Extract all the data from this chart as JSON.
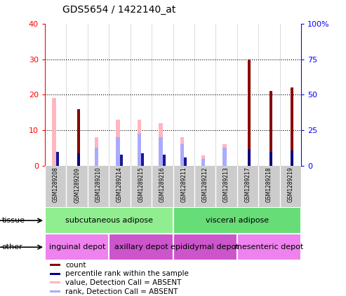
{
  "title": "GDS5654 / 1422140_at",
  "samples": [
    "GSM1289208",
    "GSM1289209",
    "GSM1289210",
    "GSM1289214",
    "GSM1289215",
    "GSM1289216",
    "GSM1289211",
    "GSM1289212",
    "GSM1289213",
    "GSM1289217",
    "GSM1289218",
    "GSM1289219"
  ],
  "count": [
    0,
    16,
    0,
    0,
    0,
    0,
    0,
    0,
    0,
    30,
    21,
    22
  ],
  "percentile": [
    10,
    9,
    0,
    8,
    9,
    8,
    6,
    0,
    0,
    12,
    10,
    11
  ],
  "value_absent": [
    19,
    0,
    8,
    13,
    13,
    12,
    8,
    3,
    6,
    0,
    0,
    0
  ],
  "rank_absent": [
    0,
    0,
    5,
    8,
    9,
    8,
    6,
    2,
    5,
    0,
    0,
    0
  ],
  "ylim_left": [
    0,
    40
  ],
  "ylim_right": [
    0,
    100
  ],
  "yticks_left": [
    0,
    10,
    20,
    30,
    40
  ],
  "yticks_right": [
    0,
    25,
    50,
    75,
    100
  ],
  "ytick_labels_left": [
    "0",
    "10",
    "20",
    "30",
    "40"
  ],
  "ytick_labels_right": [
    "0",
    "25",
    "50",
    "75",
    "100%"
  ],
  "tissue_groups": [
    {
      "label": "subcutaneous adipose",
      "start": 0,
      "end": 6,
      "color": "#90EE90"
    },
    {
      "label": "visceral adipose",
      "start": 6,
      "end": 12,
      "color": "#66DD77"
    }
  ],
  "other_groups": [
    {
      "label": "inguinal depot",
      "start": 0,
      "end": 3,
      "color": "#EE82EE"
    },
    {
      "label": "axillary depot",
      "start": 3,
      "end": 6,
      "color": "#CC55CC"
    },
    {
      "label": "epididymal depot",
      "start": 6,
      "end": 9,
      "color": "#CC55CC"
    },
    {
      "label": "mesenteric depot",
      "start": 9,
      "end": 12,
      "color": "#EE82EE"
    }
  ],
  "count_color": "#8B0000",
  "percentile_color": "#00008B",
  "value_absent_color": "#FFB6C1",
  "rank_absent_color": "#AAAAFF",
  "plot_bg": "#FFFFFF",
  "xtick_bg": "#CCCCCC",
  "legend_items": [
    {
      "color": "#8B0000",
      "label": "count"
    },
    {
      "color": "#00008B",
      "label": "percentile rank within the sample"
    },
    {
      "color": "#FFB6C1",
      "label": "value, Detection Call = ABSENT"
    },
    {
      "color": "#AAAAFF",
      "label": "rank, Detection Call = ABSENT"
    }
  ]
}
